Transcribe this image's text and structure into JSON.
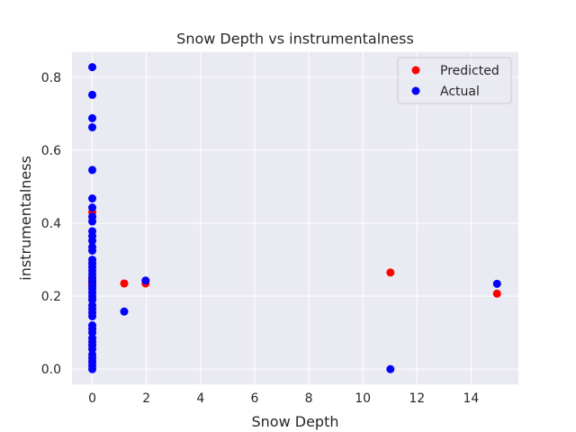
{
  "chart_data": {
    "type": "scatter",
    "title": "Snow Depth vs instrumentalness",
    "xlabel": "Snow Depth",
    "ylabel": "instrumentalness",
    "xlim": [
      -0.75,
      15.75
    ],
    "ylim": [
      -0.042,
      0.87
    ],
    "xticks": [
      0,
      2,
      4,
      6,
      8,
      10,
      12,
      14
    ],
    "yticks": [
      0.0,
      0.2,
      0.4,
      0.6,
      0.8
    ],
    "grid": true,
    "legend_position": "top-right",
    "series": [
      {
        "name": "Predicted",
        "color": "#ff0000",
        "points": [
          {
            "x": 0,
            "y": 0.43
          },
          {
            "x": 0,
            "y": 0.25
          },
          {
            "x": 0,
            "y": 0.245
          },
          {
            "x": 0,
            "y": 0.24
          },
          {
            "x": 0,
            "y": 0.235
          },
          {
            "x": 0,
            "y": 0.23
          },
          {
            "x": 1.18,
            "y": 0.235
          },
          {
            "x": 1.97,
            "y": 0.235
          },
          {
            "x": 11.02,
            "y": 0.265
          },
          {
            "x": 14.96,
            "y": 0.207
          }
        ]
      },
      {
        "name": "Actual",
        "color": "#0000ff",
        "points": [
          {
            "x": 0,
            "y": 0.828
          },
          {
            "x": 0,
            "y": 0.752
          },
          {
            "x": 0,
            "y": 0.688
          },
          {
            "x": 0,
            "y": 0.663
          },
          {
            "x": 0,
            "y": 0.546
          },
          {
            "x": 0,
            "y": 0.468
          },
          {
            "x": 0,
            "y": 0.443
          },
          {
            "x": 0,
            "y": 0.418
          },
          {
            "x": 0,
            "y": 0.405
          },
          {
            "x": 0,
            "y": 0.378
          },
          {
            "x": 0,
            "y": 0.365
          },
          {
            "x": 0,
            "y": 0.352
          },
          {
            "x": 0,
            "y": 0.335
          },
          {
            "x": 0,
            "y": 0.325
          },
          {
            "x": 0,
            "y": 0.3
          },
          {
            "x": 0,
            "y": 0.29
          },
          {
            "x": 0,
            "y": 0.28
          },
          {
            "x": 0,
            "y": 0.27
          },
          {
            "x": 0,
            "y": 0.26
          },
          {
            "x": 0,
            "y": 0.25
          },
          {
            "x": 0,
            "y": 0.24
          },
          {
            "x": 0,
            "y": 0.228
          },
          {
            "x": 0,
            "y": 0.22
          },
          {
            "x": 0,
            "y": 0.21
          },
          {
            "x": 0,
            "y": 0.2
          },
          {
            "x": 0,
            "y": 0.19
          },
          {
            "x": 0,
            "y": 0.175
          },
          {
            "x": 0,
            "y": 0.165
          },
          {
            "x": 0,
            "y": 0.155
          },
          {
            "x": 0,
            "y": 0.145
          },
          {
            "x": 0,
            "y": 0.12
          },
          {
            "x": 0,
            "y": 0.11
          },
          {
            "x": 0,
            "y": 0.1
          },
          {
            "x": 0,
            "y": 0.085
          },
          {
            "x": 0,
            "y": 0.075
          },
          {
            "x": 0,
            "y": 0.065
          },
          {
            "x": 0,
            "y": 0.055
          },
          {
            "x": 0,
            "y": 0.04
          },
          {
            "x": 0,
            "y": 0.03
          },
          {
            "x": 0,
            "y": 0.02
          },
          {
            "x": 0,
            "y": 0.01
          },
          {
            "x": 0,
            "y": 0.0
          },
          {
            "x": 1.18,
            "y": 0.158
          },
          {
            "x": 1.97,
            "y": 0.243
          },
          {
            "x": 11.02,
            "y": 0.0
          },
          {
            "x": 14.96,
            "y": 0.234
          }
        ]
      }
    ]
  },
  "colors": {
    "figure_background": "#ffffff",
    "plot_background": "#eaeaf2",
    "grid": "#ffffff",
    "text": "#262626"
  }
}
